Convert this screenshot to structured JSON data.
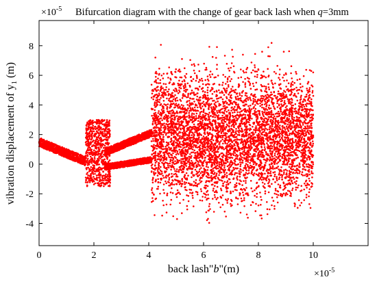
{
  "chart_data": {
    "type": "scatter",
    "title_prefix": "Bifurcation diagram with the change of gear back lash when ",
    "title_var": "q",
    "title_suffix": "=3mm",
    "xlabel_prefix": "back lash\"",
    "xlabel_var": "b",
    "xlabel_suffix": "\"(m)",
    "ylabel_prefix": "vibration displacement of y",
    "ylabel_sub": "1",
    "ylabel_suffix": " (m)",
    "x_exponent_base": "×10",
    "x_exponent_power": "-5",
    "y_exponent_base": "×10",
    "y_exponent_power": "-5",
    "xlim": [
      0,
      12
    ],
    "ylim": [
      -5.5,
      9.7
    ],
    "x_ticks": [
      0,
      2,
      4,
      6,
      8,
      10
    ],
    "x_tick_labels": [
      "0",
      "2",
      "4",
      "6",
      "8",
      "10"
    ],
    "y_ticks": [
      -4,
      -2,
      0,
      2,
      4,
      6,
      8
    ],
    "y_tick_labels": [
      "-4",
      "-2",
      "0",
      "2",
      "4",
      "6",
      "8"
    ],
    "grid": false,
    "marker_color": "#ff0000",
    "regions": [
      {
        "name": "period-1 branch",
        "x_range": [
          0,
          1.7
        ],
        "y_start": 1.5,
        "y_end": 0.2,
        "spread": 0.6
      },
      {
        "name": "chaotic window",
        "x_range": [
          1.7,
          2.6
        ],
        "y_range": [
          -1.5,
          3.0
        ]
      },
      {
        "name": "upper branch",
        "x_range": [
          2.4,
          4.1
        ],
        "y_start": 0.8,
        "y_end": 2.1,
        "spread": 0.5
      },
      {
        "name": "lower branch",
        "x_range": [
          2.4,
          4.1
        ],
        "y_start": -0.2,
        "y_end": 0.3,
        "spread": 0.4
      },
      {
        "name": "chaotic region",
        "x_range": [
          4.1,
          10.0
        ],
        "y_range": [
          -5.2,
          9.0
        ]
      }
    ]
  }
}
